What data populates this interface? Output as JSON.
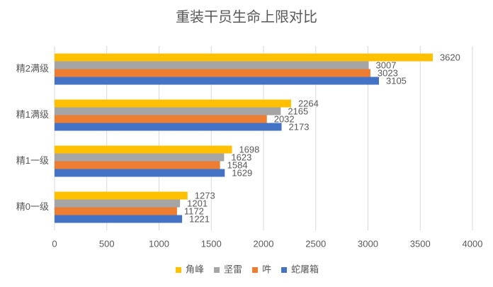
{
  "chart_data": {
    "type": "hbar",
    "title": "重装干员生命上限对比",
    "categories": [
      "精2满级",
      "精1满级",
      "精1一级",
      "精0一级"
    ],
    "series": [
      {
        "name": "角峰",
        "color": "#FFC000",
        "values": [
          3620,
          2264,
          1698,
          1273
        ]
      },
      {
        "name": "坚雷",
        "color": "#A5A5A5",
        "values": [
          3007,
          2165,
          1623,
          1201
        ]
      },
      {
        "name": "吽",
        "color": "#ED7D31",
        "values": [
          3023,
          2032,
          1584,
          1172
        ]
      },
      {
        "name": "蛇屠箱",
        "color": "#4472C4",
        "values": [
          3105,
          2173,
          1629,
          1221
        ]
      }
    ],
    "xlim": [
      0,
      4000
    ],
    "xticks": [
      0,
      500,
      1000,
      1500,
      2000,
      2500,
      3000,
      3500,
      4000
    ],
    "grid": true,
    "legend": "bottom"
  }
}
